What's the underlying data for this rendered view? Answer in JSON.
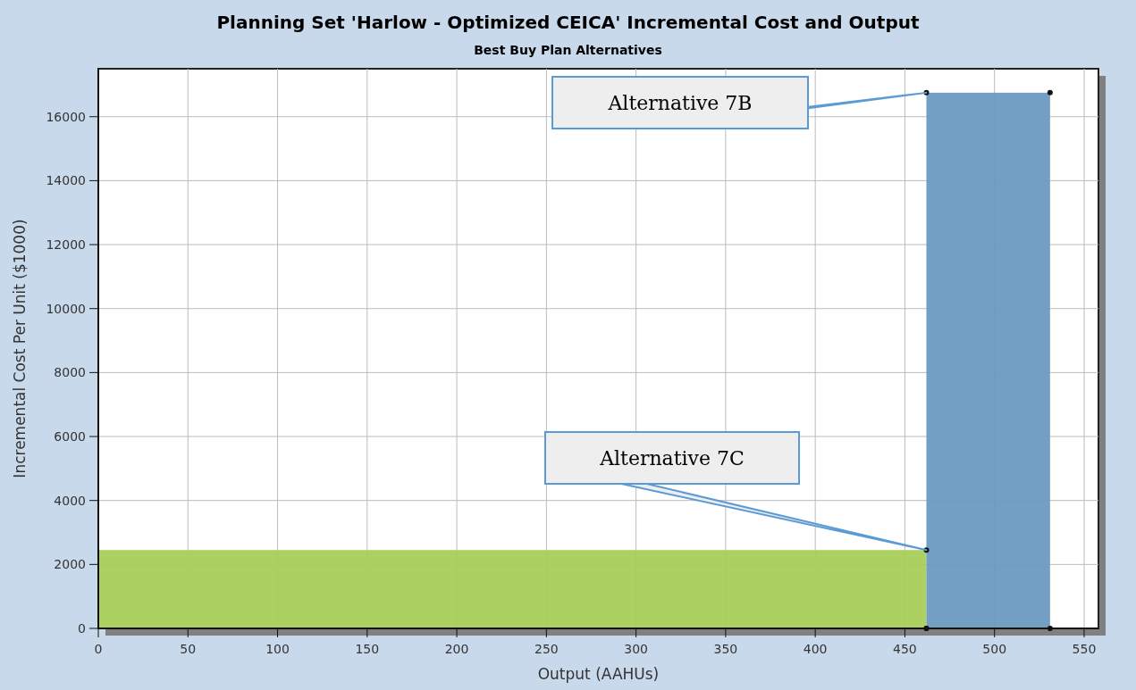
{
  "chart_data": {
    "type": "histogram",
    "title": "Planning Set 'Harlow - Optimized CEICA' Incremental Cost and Output",
    "subtitle": "Best Buy Plan Alternatives",
    "xlabel": "Output (AAHUs)",
    "ylabel": "Incremental Cost Per Unit ($1000)",
    "bins": [
      0,
      462,
      531
    ],
    "values": [
      2450,
      16750
    ],
    "colors": [
      "#a8cf5a",
      "#6a9ac0"
    ],
    "xlim": [
      0,
      558
    ],
    "xticks": [
      0,
      50,
      100,
      150,
      200,
      250,
      300,
      350,
      400,
      450,
      500,
      550
    ],
    "ylim": [
      0,
      17500
    ],
    "yticks": [
      0,
      2000,
      4000,
      6000,
      8000,
      10000,
      12000,
      14000,
      16000
    ],
    "grid": true,
    "marker": "circle",
    "annotations": [
      {
        "text": "Alternative 7B",
        "x": 462,
        "y": 16750
      },
      {
        "text": "Alternative 7C",
        "x": 462,
        "y": 2450
      }
    ]
  }
}
